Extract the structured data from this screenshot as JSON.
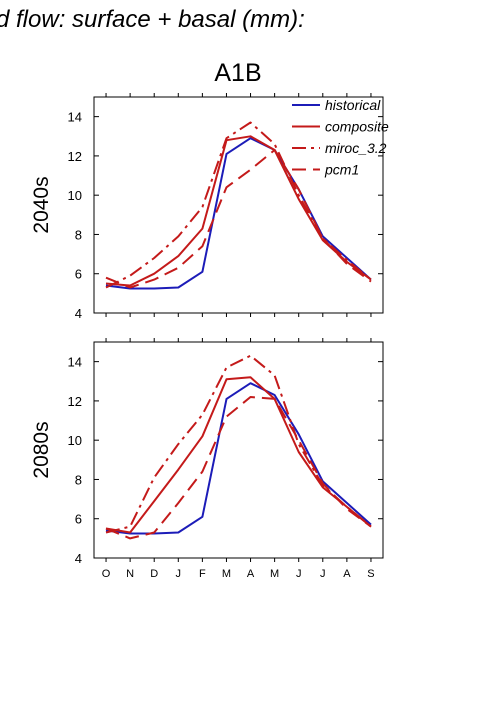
{
  "header": {
    "title": "d flow: surface + basal (mm):",
    "scenario": "A1B"
  },
  "colors": {
    "historical": "#1c1cb8",
    "projection": "#c41a1a",
    "axis": "#000000",
    "background": "#ffffff"
  },
  "chart_data": [
    {
      "type": "line",
      "period_label": "2040s",
      "x": [
        "O",
        "N",
        "D",
        "J",
        "F",
        "M",
        "A",
        "M",
        "J",
        "J",
        "A",
        "S"
      ],
      "ylim": [
        4,
        15
      ],
      "yticks": [
        4,
        6,
        8,
        10,
        12,
        14
      ],
      "grid": false,
      "legend_position": "top-right",
      "series": [
        {
          "name": "historical",
          "style": "solid",
          "color": "#1c1cb8",
          "values": [
            5.4,
            5.25,
            5.25,
            5.3,
            6.1,
            12.1,
            12.9,
            12.3,
            10.3,
            7.9,
            6.8,
            5.7
          ]
        },
        {
          "name": "composite",
          "style": "solid",
          "color": "#c41a1a",
          "values": [
            5.5,
            5.4,
            6.0,
            6.9,
            8.3,
            12.8,
            13.0,
            12.3,
            9.8,
            7.7,
            6.6,
            5.7
          ]
        },
        {
          "name": "miroc_3.2",
          "style": "dashdot",
          "color": "#c41a1a",
          "values": [
            5.3,
            5.9,
            6.8,
            7.9,
            9.4,
            12.9,
            13.7,
            12.6,
            10.0,
            7.8,
            6.7,
            5.7
          ]
        },
        {
          "name": "pcm1",
          "style": "dashed",
          "color": "#c41a1a",
          "values": [
            5.8,
            5.3,
            5.7,
            6.3,
            7.4,
            10.4,
            11.3,
            12.3,
            10.3,
            7.8,
            6.5,
            5.6
          ]
        }
      ]
    },
    {
      "type": "line",
      "period_label": "2080s",
      "x": [
        "O",
        "N",
        "D",
        "J",
        "F",
        "M",
        "A",
        "M",
        "J",
        "J",
        "A",
        "S"
      ],
      "ylim": [
        4,
        15
      ],
      "yticks": [
        4,
        6,
        8,
        10,
        12,
        14
      ],
      "grid": false,
      "series": [
        {
          "name": "historical",
          "style": "solid",
          "color": "#1c1cb8",
          "values": [
            5.4,
            5.25,
            5.25,
            5.3,
            6.1,
            12.1,
            12.9,
            12.3,
            10.3,
            7.9,
            6.8,
            5.7
          ]
        },
        {
          "name": "composite",
          "style": "solid",
          "color": "#c41a1a",
          "values": [
            5.5,
            5.3,
            6.9,
            8.5,
            10.2,
            13.1,
            13.2,
            12.1,
            9.4,
            7.6,
            6.6,
            5.6
          ]
        },
        {
          "name": "miroc_3.2",
          "style": "dashdot",
          "color": "#c41a1a",
          "values": [
            5.3,
            5.6,
            8.1,
            9.8,
            11.3,
            13.7,
            14.3,
            13.3,
            9.8,
            7.7,
            6.6,
            5.6
          ]
        },
        {
          "name": "pcm1",
          "style": "dashed",
          "color": "#c41a1a",
          "values": [
            5.5,
            5.0,
            5.3,
            6.8,
            8.4,
            11.2,
            12.2,
            12.1,
            10.0,
            7.8,
            6.5,
            5.6
          ]
        }
      ]
    }
  ]
}
